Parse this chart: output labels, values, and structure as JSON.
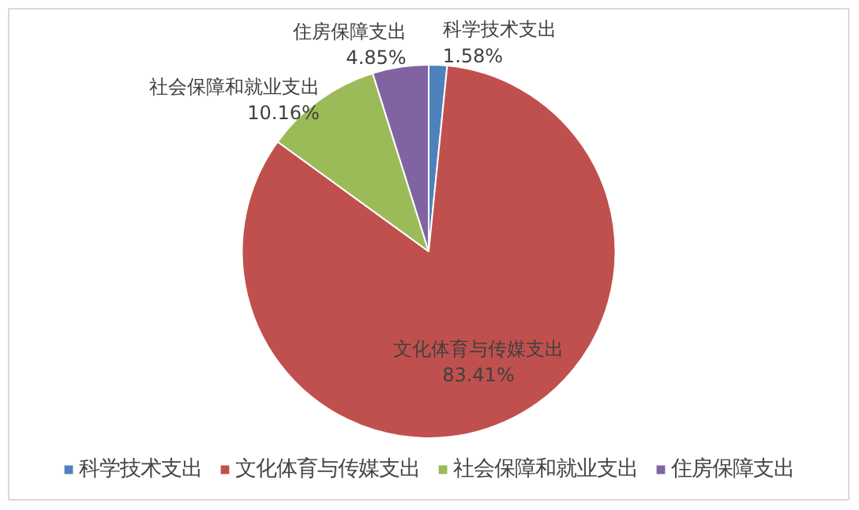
{
  "chart_data": {
    "type": "pie",
    "categories": [
      "科学技术支出",
      "文化体育与传媒支出",
      "社会保障和就业支出",
      "住房保障支出"
    ],
    "values": [
      1.58,
      83.41,
      10.16,
      4.85
    ],
    "colors": [
      "#4f81bd",
      "#c0504d",
      "#9bbb59",
      "#8064a2"
    ],
    "value_labels": [
      "科学技术支出\n1.58%",
      "文化体育与传媒支出\n83.41%",
      "社会保障和就业支出\n10.16%",
      "住房保障支出\n4.85%"
    ],
    "legend": "bottom"
  }
}
